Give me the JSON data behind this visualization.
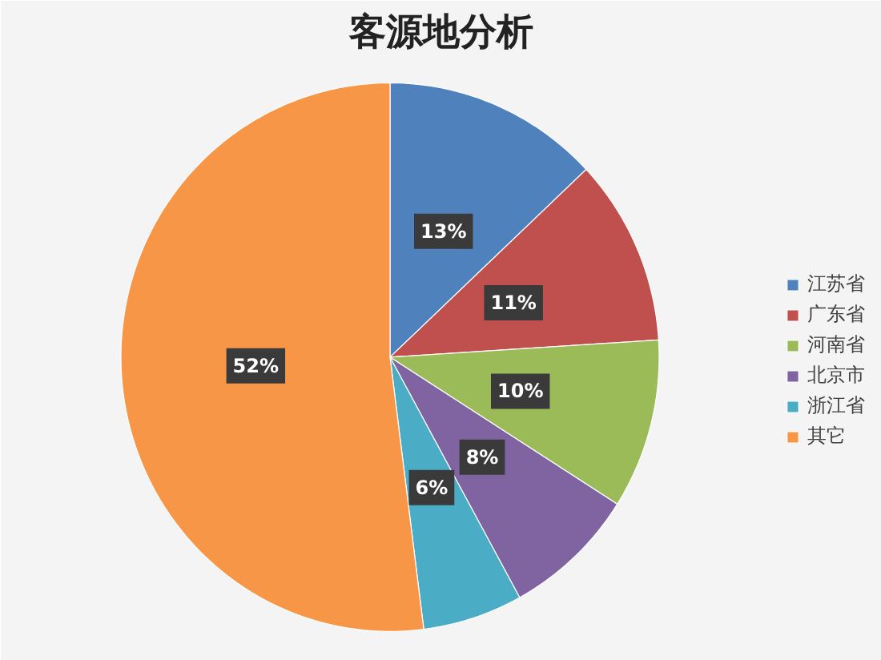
{
  "chart_data": {
    "type": "pie",
    "title": "客源地分析",
    "categories": [
      "江苏省",
      "广东省",
      "河南省",
      "北京市",
      "浙江省",
      "其它"
    ],
    "values": [
      13,
      11,
      10,
      8,
      6,
      52
    ],
    "value_labels": [
      "13%",
      "11%",
      "10%",
      "8%",
      "6%",
      "52%"
    ],
    "colors": [
      "#4f81bd",
      "#c0504d",
      "#9bbb59",
      "#8064a2",
      "#4bacc6",
      "#f79646"
    ],
    "legend": "right"
  }
}
